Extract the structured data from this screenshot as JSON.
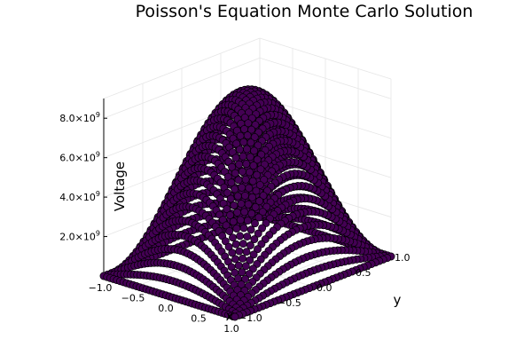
{
  "chart_data": {
    "type": "scatter",
    "projection": "3d",
    "title": "Poisson's Equation Monte Carlo Solution",
    "xlabel": "x",
    "ylabel": "y",
    "zlabel": "Voltage",
    "xlim": [
      -1.0,
      1.0
    ],
    "ylim": [
      -1.0,
      1.0
    ],
    "zlim": [
      0,
      9000000000
    ],
    "x_ticks": [
      "−1.0",
      "−0.5",
      "0.0",
      "0.5",
      "1.0"
    ],
    "y_ticks": [
      "−1.0",
      "−0.5",
      "0.0",
      "0.5",
      "1.0"
    ],
    "z_ticks": [
      {
        "value": 2000000000,
        "mantissa": "2.0×10",
        "exp": "9"
      },
      {
        "value": 4000000000,
        "mantissa": "4.0×10",
        "exp": "9"
      },
      {
        "value": 6000000000,
        "mantissa": "6.0×10",
        "exp": "9"
      },
      {
        "value": 8000000000,
        "mantissa": "8.0×10",
        "exp": "9"
      }
    ],
    "grid": true,
    "legend": "none",
    "marker_color": "#440154",
    "marker_edge_color": "#000000",
    "surface": {
      "peak_voltage": 8900000000,
      "profile": "cos(pi*x/2)*cos(pi*y/2)",
      "grid_points_per_axis": 41
    }
  }
}
